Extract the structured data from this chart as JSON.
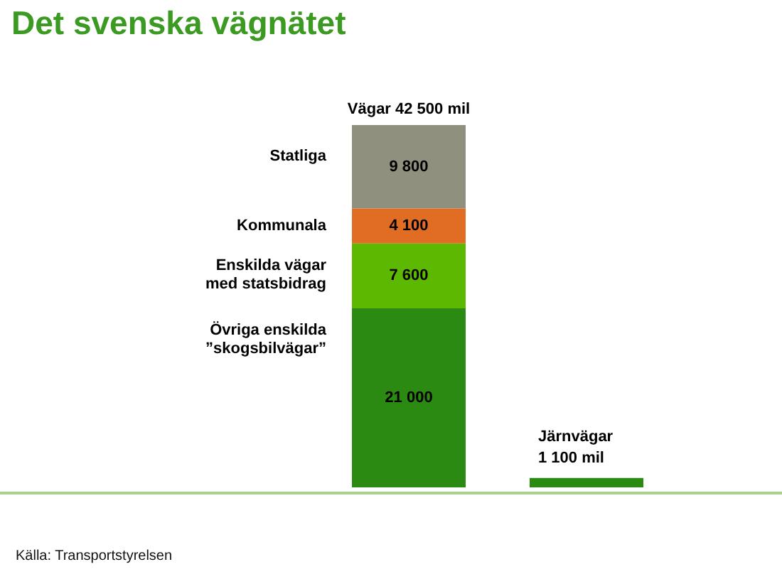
{
  "chart_data": {
    "type": "bar",
    "title": "Det svenska vägnätet",
    "categories": [
      null,
      null
    ],
    "stacked": true,
    "tick_labels": false,
    "series": [
      {
        "name": "Övriga enskilda ”skogsbilvägar”",
        "color": "#2a8a12",
        "values": [
          21000,
          null
        ],
        "value_labels": [
          "21 000",
          null
        ]
      },
      {
        "name": "Enskilda vägar med statsbidrag",
        "color": "#5cb800",
        "values": [
          7600,
          null
        ],
        "value_labels": [
          "7 600",
          null
        ]
      },
      {
        "name": "Kommunala",
        "color": "#e06d23",
        "values": [
          4100,
          null
        ],
        "value_labels": [
          "4 100",
          null
        ]
      },
      {
        "name": "Statliga",
        "color": "#8f907e",
        "values": [
          9800,
          null
        ],
        "value_labels": [
          "9 800",
          null
        ]
      },
      {
        "color": "#2a8a12",
        "values": [
          null,
          1100
        ]
      }
    ],
    "totals": [
      "Vägar 42 500 mil",
      "Järnvägar 1 100 mil"
    ],
    "annotations": [
      "Källa: Transportstyrelsen"
    ]
  }
}
